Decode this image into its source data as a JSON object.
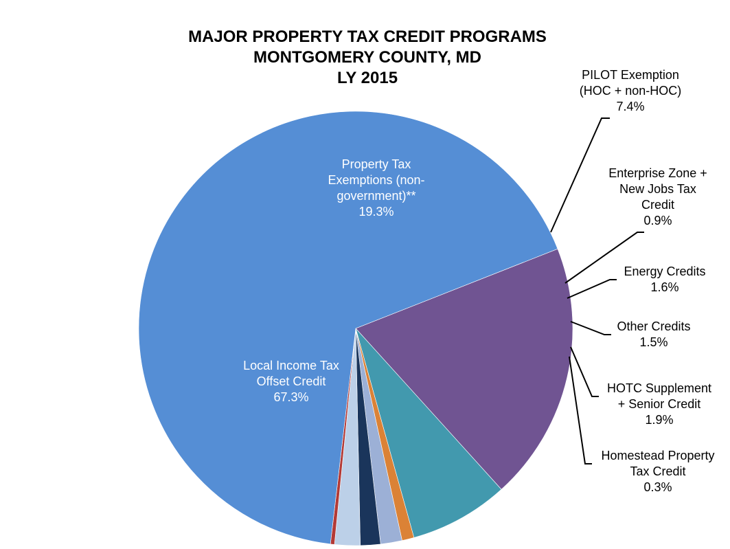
{
  "chart_data": {
    "type": "pie",
    "title_lines": [
      "MAJOR PROPERTY TAX CREDIT PROGRAMS",
      "MONTGOMERY COUNTY, MD",
      "LY 2015"
    ],
    "slices": [
      {
        "label_lines": [
          "Property Tax",
          "Exemptions  (non-",
          "government)**"
        ],
        "value": 19.3,
        "pct_label": "19.3%",
        "color": "#705492"
      },
      {
        "label_lines": [
          "PILOT  Exemption",
          "(HOC + non-HOC)"
        ],
        "value": 7.4,
        "pct_label": "7.4%",
        "color": "#4299AE"
      },
      {
        "label_lines": [
          "Enterprise Zone +",
          "New Jobs Tax",
          "Credit"
        ],
        "value": 0.9,
        "pct_label": "0.9%",
        "color": "#DB8236"
      },
      {
        "label_lines": [
          "Energy Credits"
        ],
        "value": 1.6,
        "pct_label": "1.6%",
        "color": "#9CB0D6"
      },
      {
        "label_lines": [
          "Other Credits"
        ],
        "value": 1.5,
        "pct_label": "1.5%",
        "color": "#1A355B"
      },
      {
        "label_lines": [
          "HOTC  Supplement",
          "+ Senior Credit"
        ],
        "value": 1.9,
        "pct_label": "1.9%",
        "color": "#BCD0E8"
      },
      {
        "label_lines": [
          "Homestead  Property",
          "Tax Credit"
        ],
        "value": 0.3,
        "pct_label": "0.3%",
        "color": "#B33A36"
      },
      {
        "label_lines": [
          "Local Income Tax",
          "Offset Credit"
        ],
        "value": 67.3,
        "pct_label": "67.3%",
        "color": "#558ED5"
      }
    ]
  }
}
